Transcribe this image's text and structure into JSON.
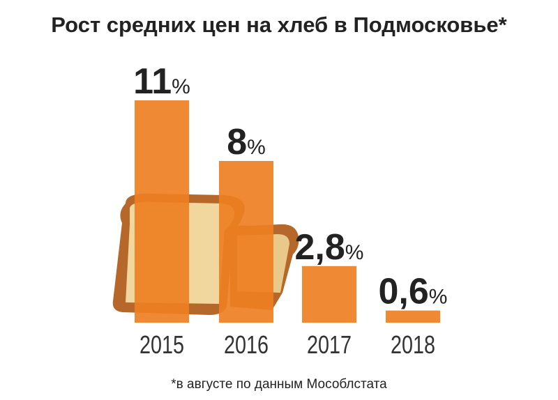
{
  "chart_data": {
    "type": "bar",
    "title": "Рост средних цен на хлеб в Подмосковье*",
    "categories": [
      "2015",
      "2016",
      "2017",
      "2018"
    ],
    "values": [
      11,
      8,
      2.8,
      0.6
    ],
    "value_labels": [
      "11%",
      "8%",
      "2,8%",
      "0,6%"
    ],
    "color": "#ee7f22",
    "footnote": "*в августе по данным Мособлстата"
  }
}
